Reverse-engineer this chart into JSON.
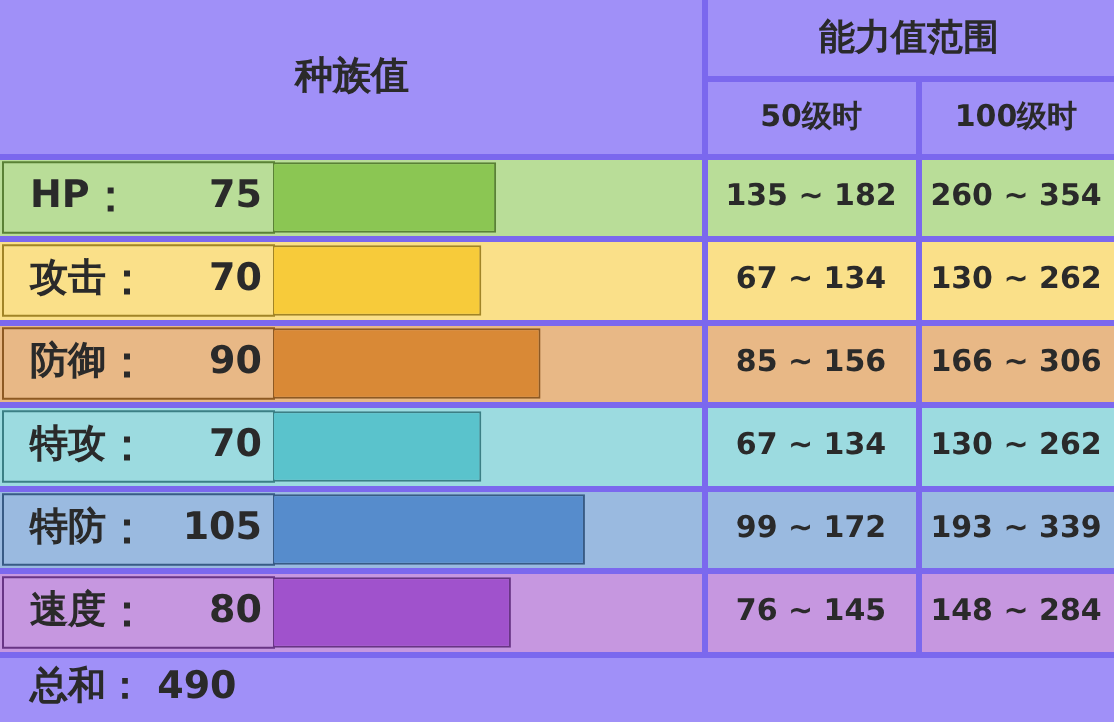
{
  "chart_data": {
    "type": "bar",
    "orientation": "horizontal",
    "title": "种族值",
    "categories": [
      "HP",
      "攻击",
      "防御",
      "特攻",
      "特防",
      "速度"
    ],
    "values": [
      75,
      70,
      90,
      70,
      105,
      80
    ],
    "colors": [
      "#8bc653",
      "#f7cb3a",
      "#d98936",
      "#5ac3cc",
      "#568ccc",
      "#a052cc"
    ],
    "data_labels": true,
    "legend": false,
    "annotations": [
      "能力值范围",
      "50级时",
      "100级时",
      "135 ~ 182",
      "260 ~ 354",
      "67 ~ 134",
      "130 ~ 262",
      "85 ~ 156",
      "166 ~ 306",
      "67 ~ 134",
      "130 ~ 262",
      "99 ~ 172",
      "193 ~ 339",
      "76 ~ 145",
      "148 ~ 284",
      "总和： 490"
    ]
  }
}
